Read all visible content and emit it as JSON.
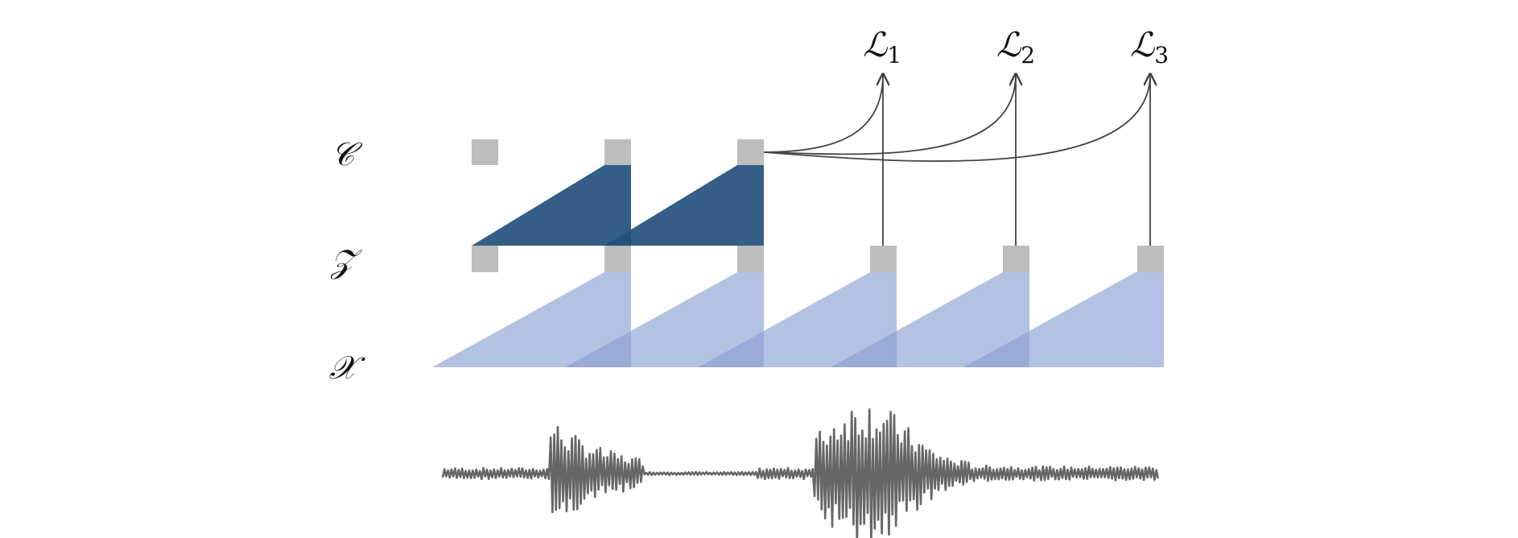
{
  "diagram": {
    "row_labels": {
      "context": "𝒞",
      "latent": "𝒵",
      "input": "𝒳"
    },
    "losses": [
      {
        "symbol": "ℒ",
        "subscript": "1"
      },
      {
        "symbol": "ℒ",
        "subscript": "2"
      },
      {
        "symbol": "ℒ",
        "subscript": "3"
      }
    ],
    "colors": {
      "node": "#bdbdbd",
      "context_network": "#23507c",
      "encoder": "#b3c2e2",
      "encoder_overlap": "#9babd8",
      "waveform": "#666666",
      "arrows": "#444444",
      "text": "#111111"
    },
    "context_node_count": 3,
    "latent_node_count": 6
  }
}
